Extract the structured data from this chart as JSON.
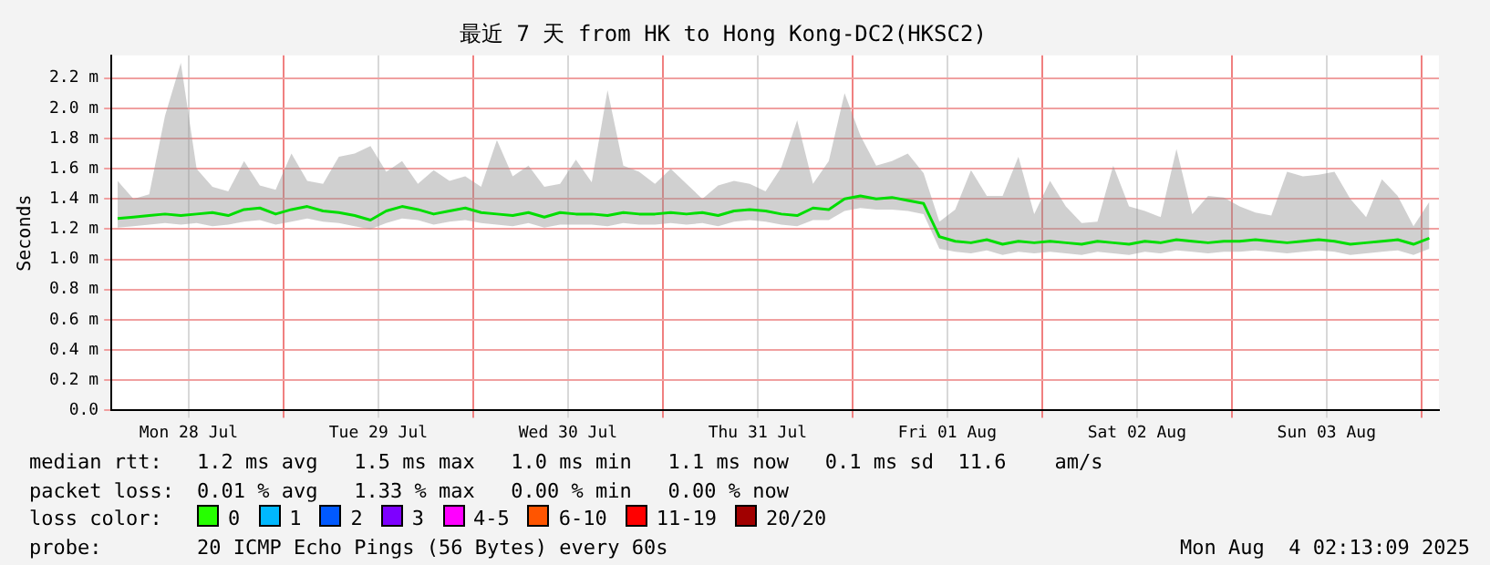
{
  "chart_data": {
    "type": "line",
    "title": "最近 7 天 from HK to Hong Kong-DC2(HKSC2)",
    "ylabel": "Seconds",
    "xlim": [
      "2025-07-28T02:13",
      "2025-08-04T02:13"
    ],
    "xticks": [
      {
        "value": "2025-07-28T12:00",
        "label": "Mon 28 Jul"
      },
      {
        "value": "2025-07-29T00:00",
        "label": null
      },
      {
        "value": "2025-07-29T12:00",
        "label": "Tue 29 Jul"
      },
      {
        "value": "2025-07-30T00:00",
        "label": null
      },
      {
        "value": "2025-07-30T12:00",
        "label": "Wed 30 Jul"
      },
      {
        "value": "2025-07-31T00:00",
        "label": null
      },
      {
        "value": "2025-07-31T12:00",
        "label": "Thu 31 Jul"
      },
      {
        "value": "2025-08-01T00:00",
        "label": null
      },
      {
        "value": "2025-08-01T12:00",
        "label": "Fri 01 Aug"
      },
      {
        "value": "2025-08-02T00:00",
        "label": null
      },
      {
        "value": "2025-08-02T12:00",
        "label": "Sat 02 Aug"
      },
      {
        "value": "2025-08-03T00:00",
        "label": null
      },
      {
        "value": "2025-08-03T12:00",
        "label": "Sun 03 Aug"
      },
      {
        "value": "2025-08-04T00:00",
        "label": null
      }
    ],
    "ylim": [
      0,
      2.35
    ],
    "yticks": [
      {
        "value": 0,
        "label": "0.0"
      },
      {
        "value": 0.2,
        "label": "0.2 m"
      },
      {
        "value": 0.4,
        "label": "0.4 m"
      },
      {
        "value": 0.6,
        "label": "0.6 m"
      },
      {
        "value": 0.8,
        "label": "0.8 m"
      },
      {
        "value": 1.0,
        "label": "1.0 m"
      },
      {
        "value": 1.2,
        "label": "1.2 m"
      },
      {
        "value": 1.4,
        "label": "1.4 m"
      },
      {
        "value": 1.6,
        "label": "1.6 m"
      },
      {
        "value": 1.8,
        "label": "1.8 m"
      },
      {
        "value": 2.0,
        "label": "2.0 m"
      },
      {
        "value": 2.2,
        "label": "2.2 m"
      }
    ],
    "grid": true,
    "legend": false,
    "marker": "none",
    "line_style": "solid",
    "x": [
      "2025-07-28T03:00",
      "2025-07-28T05:00",
      "2025-07-28T07:00",
      "2025-07-28T09:00",
      "2025-07-28T11:00",
      "2025-07-28T13:00",
      "2025-07-28T15:00",
      "2025-07-28T17:00",
      "2025-07-28T19:00",
      "2025-07-28T21:00",
      "2025-07-28T23:00",
      "2025-07-29T01:00",
      "2025-07-29T03:00",
      "2025-07-29T05:00",
      "2025-07-29T07:00",
      "2025-07-29T09:00",
      "2025-07-29T11:00",
      "2025-07-29T13:00",
      "2025-07-29T15:00",
      "2025-07-29T17:00",
      "2025-07-29T19:00",
      "2025-07-29T21:00",
      "2025-07-29T23:00",
      "2025-07-30T01:00",
      "2025-07-30T03:00",
      "2025-07-30T05:00",
      "2025-07-30T07:00",
      "2025-07-30T09:00",
      "2025-07-30T11:00",
      "2025-07-30T13:00",
      "2025-07-30T15:00",
      "2025-07-30T17:00",
      "2025-07-30T19:00",
      "2025-07-30T21:00",
      "2025-07-30T23:00",
      "2025-07-31T01:00",
      "2025-07-31T03:00",
      "2025-07-31T05:00",
      "2025-07-31T07:00",
      "2025-07-31T09:00",
      "2025-07-31T11:00",
      "2025-07-31T13:00",
      "2025-07-31T15:00",
      "2025-07-31T17:00",
      "2025-07-31T19:00",
      "2025-07-31T21:00",
      "2025-07-31T23:00",
      "2025-08-01T01:00",
      "2025-08-01T03:00",
      "2025-08-01T05:00",
      "2025-08-01T07:00",
      "2025-08-01T09:00",
      "2025-08-01T11:00",
      "2025-08-01T13:00",
      "2025-08-01T15:00",
      "2025-08-01T17:00",
      "2025-08-01T19:00",
      "2025-08-01T21:00",
      "2025-08-01T23:00",
      "2025-08-02T01:00",
      "2025-08-02T03:00",
      "2025-08-02T05:00",
      "2025-08-02T07:00",
      "2025-08-02T09:00",
      "2025-08-02T11:00",
      "2025-08-02T13:00",
      "2025-08-02T15:00",
      "2025-08-02T17:00",
      "2025-08-02T19:00",
      "2025-08-02T21:00",
      "2025-08-02T23:00",
      "2025-08-03T01:00",
      "2025-08-03T03:00",
      "2025-08-03T05:00",
      "2025-08-03T07:00",
      "2025-08-03T09:00",
      "2025-08-03T11:00",
      "2025-08-03T13:00",
      "2025-08-03T15:00",
      "2025-08-03T17:00",
      "2025-08-03T19:00",
      "2025-08-03T21:00",
      "2025-08-03T23:00",
      "2025-08-04T01:00"
    ],
    "series": [
      {
        "color": "#00dd00",
        "values": [
          1.27,
          1.28,
          1.29,
          1.3,
          1.29,
          1.3,
          1.31,
          1.29,
          1.33,
          1.34,
          1.3,
          1.33,
          1.35,
          1.32,
          1.31,
          1.29,
          1.26,
          1.32,
          1.35,
          1.33,
          1.3,
          1.32,
          1.34,
          1.31,
          1.3,
          1.29,
          1.31,
          1.28,
          1.31,
          1.3,
          1.3,
          1.29,
          1.31,
          1.3,
          1.3,
          1.31,
          1.3,
          1.31,
          1.29,
          1.32,
          1.33,
          1.32,
          1.3,
          1.29,
          1.34,
          1.33,
          1.4,
          1.42,
          1.4,
          1.41,
          1.39,
          1.37,
          1.15,
          1.12,
          1.11,
          1.13,
          1.1,
          1.12,
          1.11,
          1.12,
          1.11,
          1.1,
          1.12,
          1.11,
          1.1,
          1.12,
          1.11,
          1.13,
          1.12,
          1.11,
          1.12,
          1.12,
          1.13,
          1.12,
          1.11,
          1.12,
          1.13,
          1.12,
          1.1,
          1.11,
          1.12,
          1.13,
          1.1,
          1.14
        ],
        "lower": [
          1.21,
          1.22,
          1.23,
          1.24,
          1.23,
          1.24,
          1.22,
          1.23,
          1.25,
          1.26,
          1.23,
          1.25,
          1.27,
          1.25,
          1.24,
          1.22,
          1.2,
          1.24,
          1.27,
          1.26,
          1.23,
          1.25,
          1.26,
          1.24,
          1.23,
          1.22,
          1.24,
          1.21,
          1.23,
          1.23,
          1.23,
          1.22,
          1.24,
          1.23,
          1.23,
          1.24,
          1.23,
          1.24,
          1.22,
          1.25,
          1.26,
          1.25,
          1.23,
          1.22,
          1.26,
          1.26,
          1.32,
          1.34,
          1.33,
          1.33,
          1.32,
          1.3,
          1.07,
          1.05,
          1.04,
          1.06,
          1.03,
          1.05,
          1.04,
          1.05,
          1.04,
          1.03,
          1.05,
          1.04,
          1.03,
          1.05,
          1.04,
          1.06,
          1.05,
          1.04,
          1.05,
          1.05,
          1.06,
          1.05,
          1.04,
          1.05,
          1.06,
          1.05,
          1.03,
          1.04,
          1.05,
          1.06,
          1.03,
          1.07
        ],
        "upper": [
          1.52,
          1.4,
          1.43,
          1.95,
          2.3,
          1.6,
          1.48,
          1.45,
          1.65,
          1.49,
          1.46,
          1.7,
          1.52,
          1.5,
          1.68,
          1.7,
          1.75,
          1.58,
          1.65,
          1.5,
          1.59,
          1.52,
          1.55,
          1.48,
          1.79,
          1.55,
          1.62,
          1.48,
          1.5,
          1.66,
          1.51,
          2.12,
          1.62,
          1.58,
          1.5,
          1.6,
          1.5,
          1.4,
          1.49,
          1.52,
          1.5,
          1.45,
          1.61,
          1.92,
          1.5,
          1.65,
          2.1,
          1.82,
          1.62,
          1.65,
          1.7,
          1.57,
          1.25,
          1.33,
          1.59,
          1.42,
          1.42,
          1.68,
          1.3,
          1.52,
          1.35,
          1.24,
          1.25,
          1.62,
          1.35,
          1.32,
          1.28,
          1.73,
          1.3,
          1.42,
          1.41,
          1.35,
          1.31,
          1.29,
          1.58,
          1.55,
          1.56,
          1.58,
          1.4,
          1.28,
          1.53,
          1.42,
          1.22,
          1.38
        ]
      }
    ],
    "annotations": [
      "median rtt:",
      "1.2 ms avg   1.5 ms max   1.0 ms min   1.1 ms now   0.1 ms sd  11.6    am/s",
      "packet loss:",
      "0.01 % avg   1.33 % max   0.00 % min   0.00 % now",
      "loss color:",
      "0",
      "1",
      "2",
      "3",
      "4-5",
      "6-10",
      "11-19",
      "20/20",
      "probe:",
      "20 ICMP Echo Pings (56 Bytes) every 60s",
      "Mon Aug  4 02:13:09 2025"
    ]
  }
}
